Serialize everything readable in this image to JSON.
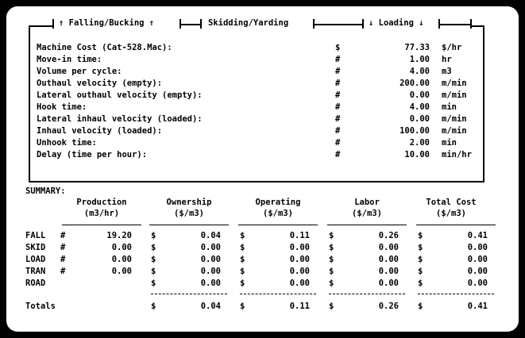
{
  "tabs": [
    {
      "label": "↑ Falling/Bucking ↑"
    },
    {
      "label": "Skidding/Yarding"
    },
    {
      "label": "↓ Loading ↓"
    }
  ],
  "params": [
    {
      "label": "Machine Cost (Cat-528.Mac):",
      "symbol": "$",
      "value": "77.33",
      "unit": "$/hr"
    },
    {
      "label": "Move-in time:",
      "symbol": "#",
      "value": "1.00",
      "unit": "hr"
    },
    {
      "label": "Volume per cycle:",
      "symbol": "#",
      "value": "4.00",
      "unit": "m3"
    },
    {
      "label": "Outhaul velocity (empty):",
      "symbol": "#",
      "value": "200.00",
      "unit": "m/min"
    },
    {
      "label": "Lateral outhaul velocity (empty):",
      "symbol": "#",
      "value": "0.00",
      "unit": "m/min"
    },
    {
      "label": "Hook time:",
      "symbol": "#",
      "value": "4.00",
      "unit": "min"
    },
    {
      "label": "Lateral inhaul velocity (loaded):",
      "symbol": "#",
      "value": "0.00",
      "unit": "m/min"
    },
    {
      "label": "Inhaul velocity (loaded):",
      "symbol": "#",
      "value": "100.00",
      "unit": "m/min"
    },
    {
      "label": "Unhook time:",
      "symbol": "#",
      "value": "2.00",
      "unit": "min"
    },
    {
      "label": "Delay (time per hour):",
      "symbol": "#",
      "value": "10.00",
      "unit": "min/hr"
    }
  ],
  "summary": {
    "title": "SUMMARY:",
    "headers": [
      {
        "line1": "Production",
        "line2": "(m3/hr)"
      },
      {
        "line1": "Ownership",
        "line2": "($/m3)"
      },
      {
        "line1": "Operating",
        "line2": "($/m3)"
      },
      {
        "line1": "Labor",
        "line2": "($/m3)"
      },
      {
        "line1": "Total Cost",
        "line2": "($/m3)"
      }
    ],
    "rows": [
      {
        "label": "FALL",
        "mark": "#",
        "production": "19.20",
        "ownership": "0.04",
        "operating": "0.11",
        "labor": "0.26",
        "total": "0.41"
      },
      {
        "label": "SKID",
        "mark": "#",
        "production": "0.00",
        "ownership": "0.00",
        "operating": "0.00",
        "labor": "0.00",
        "total": "0.00"
      },
      {
        "label": "LOAD",
        "mark": "#",
        "production": "0.00",
        "ownership": "0.00",
        "operating": "0.00",
        "labor": "0.00",
        "total": "0.00"
      },
      {
        "label": "TRAN",
        "mark": "#",
        "production": "0.00",
        "ownership": "0.00",
        "operating": "0.00",
        "labor": "0.00",
        "total": "0.00"
      },
      {
        "label": "ROAD",
        "mark": "",
        "production": "",
        "ownership": "0.00",
        "operating": "0.00",
        "labor": "0.00",
        "total": "0.00"
      }
    ],
    "currency": "$",
    "totals": {
      "label": "Totals",
      "ownership": "0.04",
      "operating": "0.11",
      "labor": "0.26",
      "total": "0.41"
    }
  }
}
